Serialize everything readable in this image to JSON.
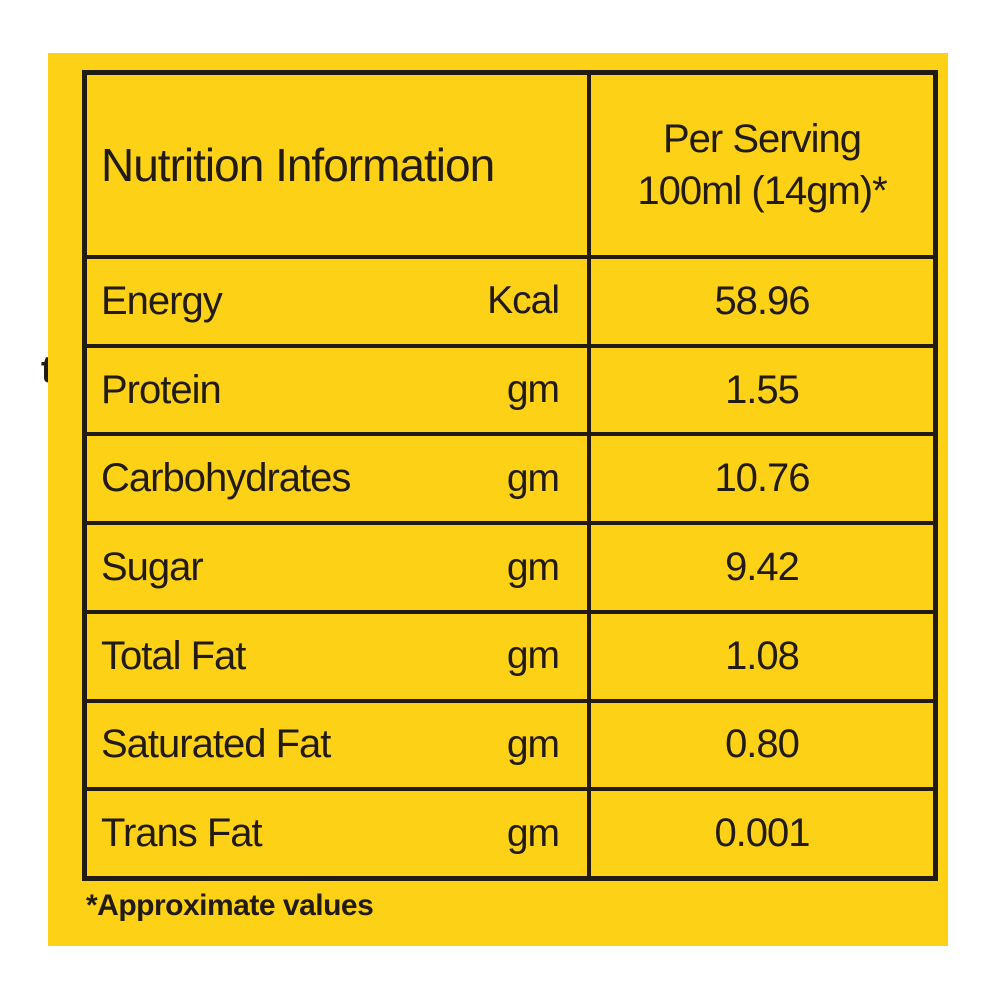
{
  "panel": {
    "background_color": "#FCD116",
    "border_color": "#211B14",
    "text_color": "#211B14"
  },
  "table": {
    "header": {
      "title": "Nutrition Information",
      "per_serving_line1": "Per Serving",
      "per_serving_line2": "100ml (14gm)*"
    },
    "rows": [
      {
        "label": "Energy",
        "unit": "Kcal",
        "value": "58.96"
      },
      {
        "label": "Protein",
        "unit": "gm",
        "value": "1.55"
      },
      {
        "label": "Carbohydrates",
        "unit": "gm",
        "value": "10.76"
      },
      {
        "label": "Sugar",
        "unit": "gm",
        "value": "9.42"
      },
      {
        "label": "Total Fat",
        "unit": "gm",
        "value": "1.08"
      },
      {
        "label": "Saturated Fat",
        "unit": "gm",
        "value": "0.80"
      },
      {
        "label": "Trans Fat",
        "unit": "gm",
        "value": "0.001"
      }
    ]
  },
  "footnote": "*Approximate values",
  "edge_artifact_glyph": "t"
}
